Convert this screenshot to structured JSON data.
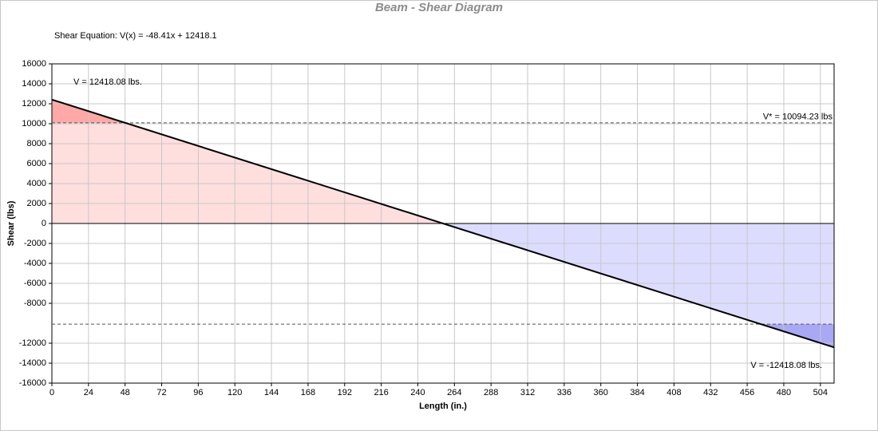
{
  "chart_data": {
    "type": "line",
    "title": "Beam - Shear Diagram",
    "equation": "Shear Equation:  V(x) = -48.41x + 12418.1",
    "x_label": "Length (in.)",
    "y_label": "Shear (lbs)",
    "x": [
      0,
      513
    ],
    "series": [
      {
        "color": "#000000",
        "values": [
          12418.08,
          -12418.08
        ]
      }
    ],
    "end_labels": [
      "V = 12418.08 lbs.",
      "V = -12418.08 lbs."
    ],
    "thresholds": [
      {
        "value": 10094.23,
        "label": "V* = 10094.23 lbs"
      },
      {
        "value": -10094.23
      }
    ],
    "fill_colors": {
      "positive": "#ffdede",
      "positive_over": "#ffa8a8",
      "negative": "#dcdcff",
      "negative_over": "#a8a8f4"
    },
    "xlim": [
      0,
      513
    ],
    "ylim": [
      -16000,
      16000
    ],
    "xticks": [
      0,
      24,
      48,
      72,
      96,
      120,
      144,
      168,
      192,
      216,
      240,
      264,
      288,
      312,
      336,
      360,
      384,
      408,
      432,
      456,
      480,
      504
    ],
    "yticks": [
      16000,
      14000,
      12000,
      10000,
      8000,
      6000,
      4000,
      2000,
      0,
      -2000,
      -4000,
      -6000,
      -8000,
      -12000,
      -14000,
      -16000
    ],
    "grid": true
  }
}
